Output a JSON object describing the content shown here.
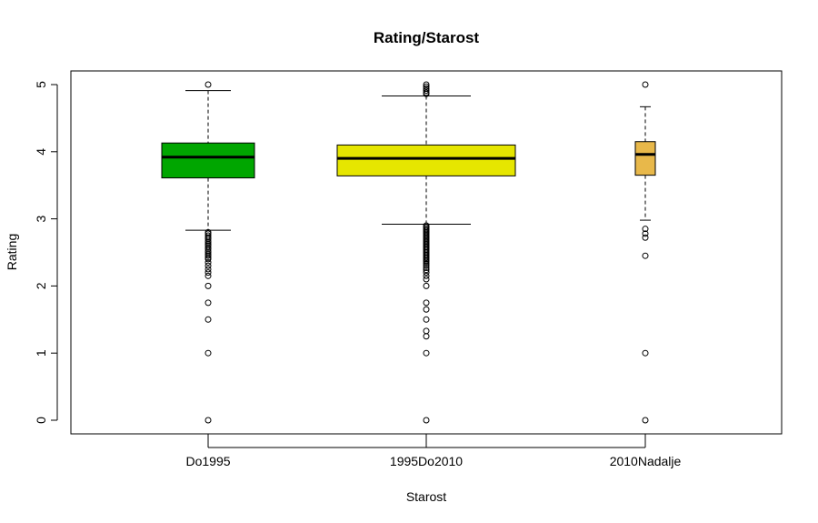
{
  "chart_data": {
    "type": "boxplot",
    "title": "Rating/Starost",
    "xlabel": "Starost",
    "ylabel": "Rating",
    "ylim": [
      -0.2,
      5.2
    ],
    "y_ticks": [
      0,
      1,
      2,
      3,
      4,
      5
    ],
    "series": [
      {
        "category": "Do1995",
        "color": "#00a600",
        "whisker_low": 2.83,
        "q1": 3.61,
        "median": 3.92,
        "q3": 4.13,
        "whisker_high": 4.91,
        "outliers": [
          5.0,
          2.8,
          2.78,
          2.75,
          2.72,
          2.7,
          2.67,
          2.65,
          2.62,
          2.6,
          2.57,
          2.55,
          2.52,
          2.5,
          2.47,
          2.45,
          2.42,
          2.4,
          2.35,
          2.3,
          2.25,
          2.2,
          2.15,
          2.0,
          1.75,
          1.5,
          1.0,
          0.0
        ]
      },
      {
        "category": "1995Do2010",
        "color": "#e6e600",
        "whisker_low": 2.92,
        "q1": 3.64,
        "median": 3.9,
        "q3": 4.1,
        "whisker_high": 4.83,
        "outliers": [
          5.0,
          4.97,
          4.94,
          4.91,
          4.88,
          4.86,
          2.9,
          2.88,
          2.86,
          2.84,
          2.82,
          2.8,
          2.78,
          2.76,
          2.74,
          2.72,
          2.7,
          2.68,
          2.66,
          2.64,
          2.62,
          2.6,
          2.58,
          2.56,
          2.54,
          2.52,
          2.5,
          2.48,
          2.46,
          2.44,
          2.42,
          2.4,
          2.38,
          2.36,
          2.33,
          2.3,
          2.27,
          2.24,
          2.2,
          2.15,
          2.1,
          2.0,
          1.75,
          1.65,
          1.5,
          1.33,
          1.25,
          1.0,
          0.0
        ]
      },
      {
        "category": "2010Nadalje",
        "color": "#e8b84a",
        "whisker_low": 2.98,
        "q1": 3.65,
        "median": 3.96,
        "q3": 4.15,
        "whisker_high": 4.67,
        "outliers": [
          5.0,
          2.85,
          2.78,
          2.72,
          2.45,
          1.0,
          0.0
        ]
      }
    ]
  }
}
